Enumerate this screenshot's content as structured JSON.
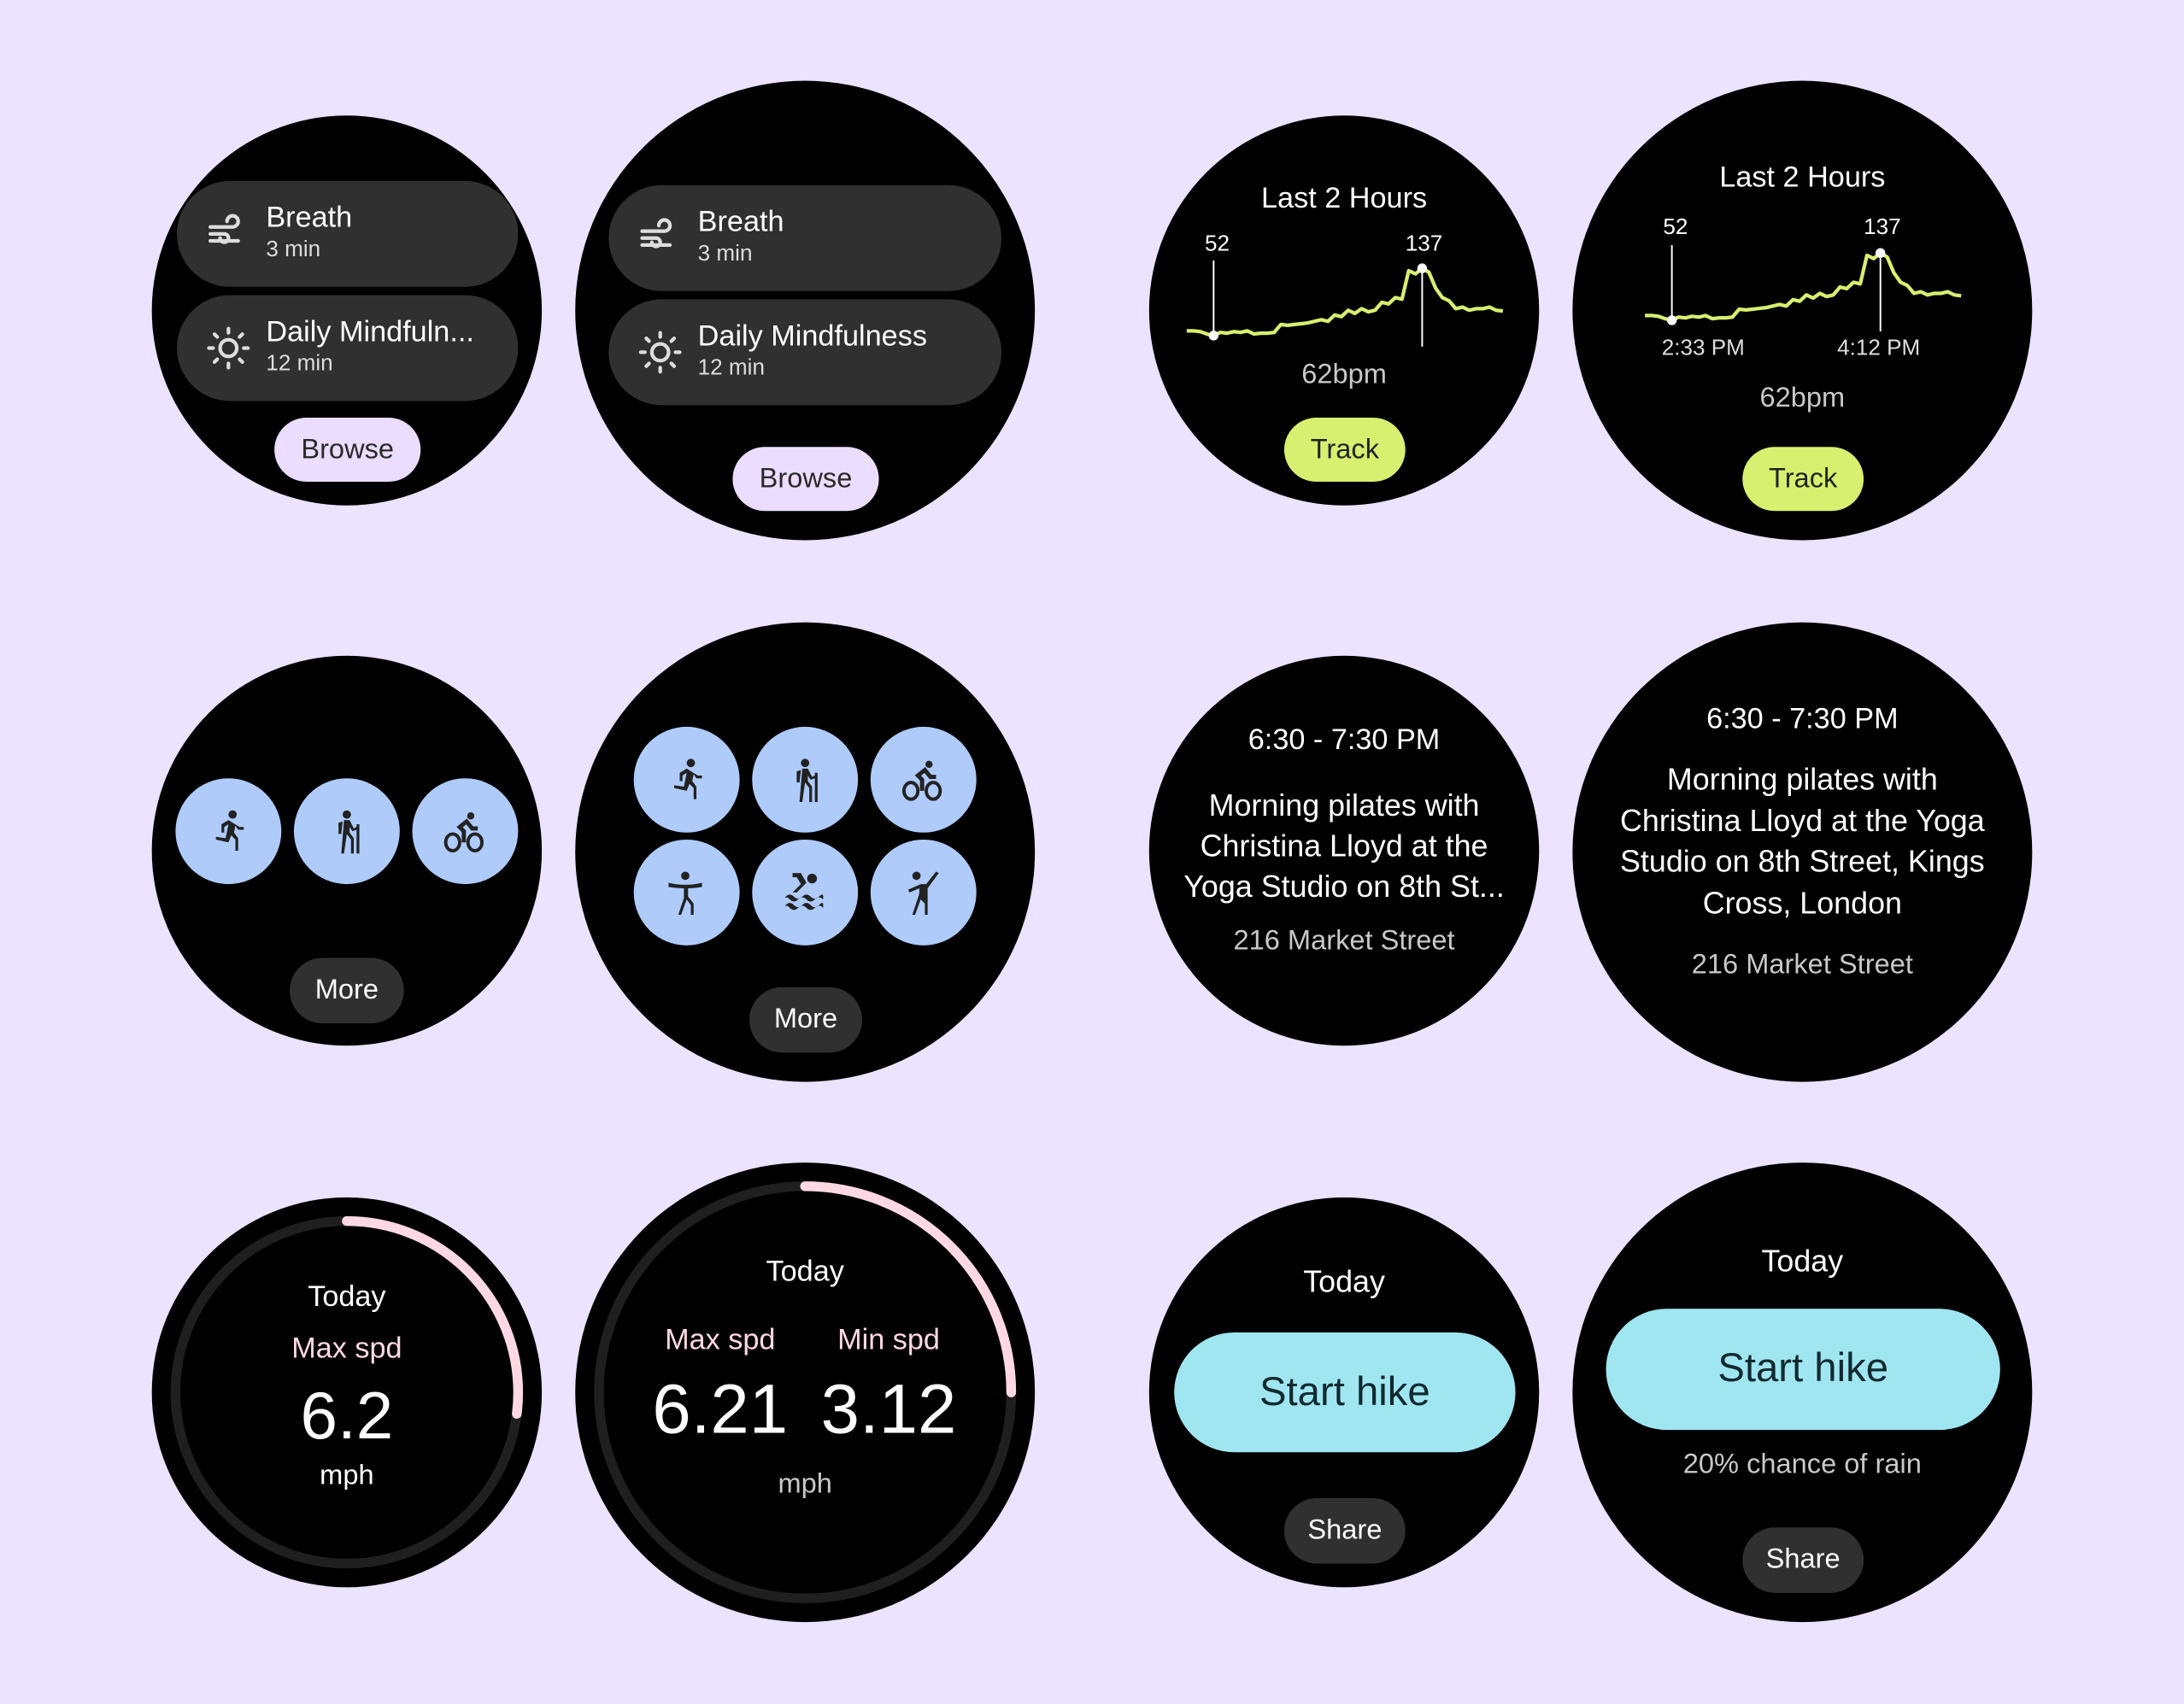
{
  "colors": {
    "background": "#ebe3ff",
    "watch": "#000000",
    "chip": "#303030",
    "browse": "#eaddff",
    "track": "#d8ef6f",
    "chart_line": "#d8ef6f",
    "activity": "#aecbfa",
    "start_hike": "#a0e6f1",
    "arc": "#ffd8e4"
  },
  "mindfulness_small": {
    "items": [
      {
        "icon": "wind-icon",
        "title": "Breath",
        "subtitle": "3 min"
      },
      {
        "icon": "sun-icon",
        "title": "Daily Mindfuln...",
        "subtitle": "12 min"
      }
    ],
    "button": "Browse"
  },
  "mindfulness_large": {
    "items": [
      {
        "icon": "wind-icon",
        "title": "Breath",
        "subtitle": "3 min"
      },
      {
        "icon": "sun-icon",
        "title": "Daily Mindfulness",
        "subtitle": "12 min"
      }
    ],
    "button": "Browse"
  },
  "heart_small": {
    "title": "Last 2 Hours",
    "min_label": "52",
    "max_label": "137",
    "value": "62bpm",
    "button": "Track"
  },
  "heart_large": {
    "title": "Last 2 Hours",
    "min_label": "52",
    "max_label": "137",
    "min_time": "2:33 PM",
    "max_time": "4:12 PM",
    "value": "62bpm",
    "button": "Track"
  },
  "chart_data": {
    "type": "line",
    "title": "Last 2 Hours",
    "values": [
      58,
      58,
      57,
      54,
      52,
      56,
      55,
      57,
      56,
      58,
      54,
      55,
      55,
      56,
      66,
      65,
      66,
      67,
      68,
      70,
      72,
      70,
      78,
      76,
      84,
      80,
      86,
      82,
      84,
      94,
      92,
      100,
      98,
      134,
      130,
      137,
      132,
      112,
      100,
      96,
      86,
      88,
      84,
      86,
      86,
      88,
      84,
      83
    ],
    "min": {
      "value": 52,
      "time": "2:33 PM"
    },
    "max": {
      "value": 137,
      "time": "4:12 PM"
    }
  },
  "activities_small": {
    "items": [
      "running-icon",
      "hiking-icon",
      "cycling-icon"
    ],
    "button": "More"
  },
  "activities_large": {
    "items": [
      "running-icon",
      "hiking-icon",
      "cycling-icon",
      "yoga-icon",
      "swimming-icon",
      "dance-icon"
    ],
    "button": "More"
  },
  "event_small": {
    "time": "6:30 - 7:30 PM",
    "lines": [
      "Morning pilates with",
      "Christina Lloyd at the",
      "Yoga Studio on 8th St..."
    ],
    "address": "216 Market Street"
  },
  "event_large": {
    "time": "6:30 - 7:30 PM",
    "lines": [
      "Morning pilates with",
      "Christina Lloyd at the Yoga",
      "Studio on 8th Street, Kings",
      "Cross, London"
    ],
    "address": "216 Market Street"
  },
  "speed_small": {
    "title": "Today",
    "label": "Max spd",
    "value": "6.2",
    "unit": "mph",
    "progress": 0.27
  },
  "speed_large": {
    "title": "Today",
    "max_label": "Max spd",
    "max_value": "6.21",
    "min_label": "Min spd",
    "min_value": "3.12",
    "unit": "mph",
    "progress": 0.25
  },
  "hike_small": {
    "title": "Today",
    "button": "Start hike",
    "share": "Share"
  },
  "hike_large": {
    "title": "Today",
    "button": "Start hike",
    "subtitle": "20% chance of rain",
    "share": "Share"
  }
}
